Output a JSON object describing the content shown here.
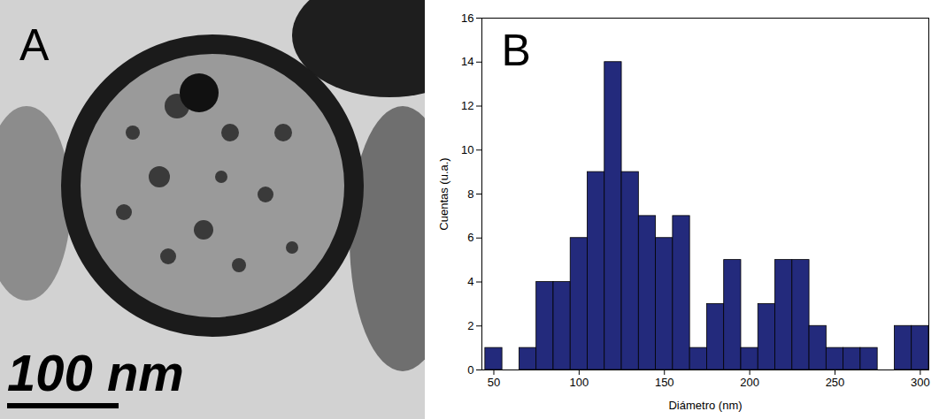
{
  "image": {
    "label": "A",
    "scale_bar": "100 nm"
  },
  "chart_data": {
    "type": "histogram",
    "label": "B",
    "x_label": "Diámetro (nm)",
    "y_label": "Cuentas (u.a.)",
    "bins": [
      45,
      55,
      65,
      75,
      85,
      95,
      105,
      115,
      125,
      135,
      145,
      155,
      165,
      175,
      185,
      195,
      205,
      215,
      225,
      235,
      245,
      255,
      265,
      275,
      285,
      295,
      305
    ],
    "values": [
      1,
      0,
      1,
      4,
      4,
      6,
      9,
      14,
      9,
      7,
      6,
      7,
      1,
      3,
      5,
      1,
      3,
      5,
      5,
      2,
      1,
      1,
      1,
      0,
      2,
      2
    ],
    "color": "#232a7c",
    "xlim": [
      43,
      305
    ],
    "xticks": [
      50,
      100,
      150,
      200,
      250,
      300
    ],
    "ylim": [
      0,
      16
    ],
    "yticks": [
      0,
      2,
      4,
      6,
      8,
      10,
      12,
      14,
      16
    ],
    "grid": false
  }
}
